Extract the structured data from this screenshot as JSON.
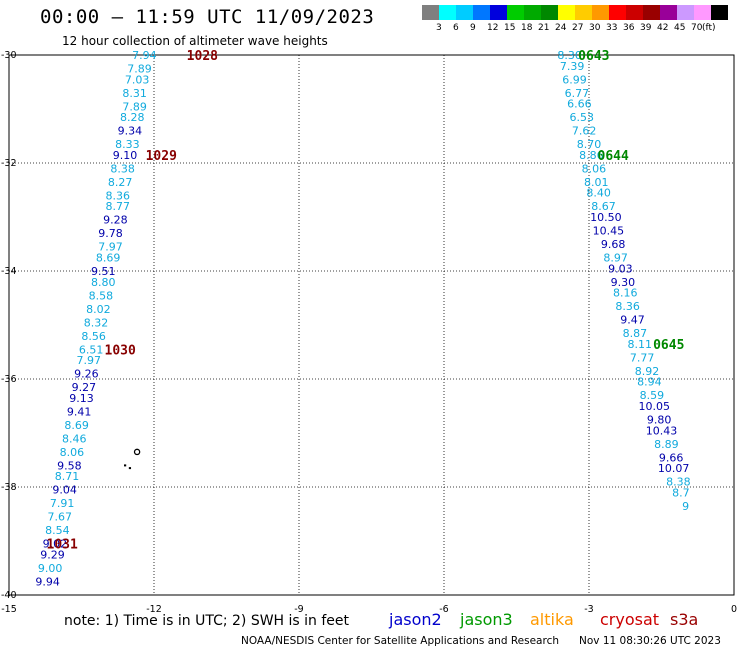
{
  "header": {
    "title": "00:00 – 11:59 UTC 11/09/2023",
    "subtitle": "12 hour collection of altimeter wave heights"
  },
  "colorbar": {
    "swatches": [
      {
        "color": "#7f7f7f",
        "label": ""
      },
      {
        "color": "#00ffff",
        "label": "3"
      },
      {
        "color": "#00ccff",
        "label": "6"
      },
      {
        "color": "#0077ff",
        "label": "9"
      },
      {
        "color": "#0000dd",
        "label": "12"
      },
      {
        "color": "#00cc00",
        "label": "15"
      },
      {
        "color": "#00aa00",
        "label": "18"
      },
      {
        "color": "#008800",
        "label": "21"
      },
      {
        "color": "#ffff00",
        "label": "24"
      },
      {
        "color": "#ffcc00",
        "label": "27"
      },
      {
        "color": "#ff9900",
        "label": "30"
      },
      {
        "color": "#ff0000",
        "label": "33"
      },
      {
        "color": "#cc0000",
        "label": "36"
      },
      {
        "color": "#990000",
        "label": "39"
      },
      {
        "color": "#990099",
        "label": "42"
      },
      {
        "color": "#cc99ff",
        "label": "45"
      },
      {
        "color": "#ff99ff",
        "label": "70"
      },
      {
        "color": "#000000",
        "label": ""
      }
    ],
    "unit": "(ft)"
  },
  "footer": {
    "note": "note:  1) Time is in UTC;  2) SWH is in feet",
    "satellites": [
      {
        "name": "jason2",
        "color": "#0000cc"
      },
      {
        "name": "jason3",
        "color": "#009900"
      },
      {
        "name": "altika",
        "color": "#ff9900"
      },
      {
        "name": "cryosat",
        "color": "#cc0000"
      },
      {
        "name": "s3a",
        "color": "#990000"
      }
    ],
    "credit": "NOAA/NESDIS Center for Satellite Applications and Research",
    "updated": "Nov 11 08:30:26 UTC 2023"
  },
  "chart_data": {
    "type": "scatter",
    "xlim": [
      -15,
      0
    ],
    "ylim": [
      -40,
      -30
    ],
    "x_ticks": [
      "-15",
      "-12",
      "-9",
      "-6",
      "-3",
      "0"
    ],
    "y_ticks": [
      "-30",
      "-32",
      "-34",
      "-36",
      "-38",
      "-40"
    ],
    "grid": true,
    "track_colors": {
      "light": "#11aadd",
      "dark": "#0000aa",
      "time_west": "#880000",
      "time_east": "#008800"
    },
    "tracks": [
      {
        "name": "western-track",
        "points": [
          {
            "lon": -12.2,
            "lat": -30.0,
            "value": "7.94",
            "shade": "light"
          },
          {
            "lon": -12.3,
            "lat": -30.25,
            "value": "7.89",
            "shade": "light"
          },
          {
            "lon": -12.35,
            "lat": -30.45,
            "value": "7.03",
            "shade": "light"
          },
          {
            "lon": -12.4,
            "lat": -30.7,
            "value": "8.31",
            "shade": "light"
          },
          {
            "lon": -12.4,
            "lat": -30.95,
            "value": "7.89",
            "shade": "light"
          },
          {
            "lon": -12.45,
            "lat": -31.15,
            "value": "8.28",
            "shade": "light"
          },
          {
            "lon": -12.5,
            "lat": -31.4,
            "value": "9.34",
            "shade": "dark"
          },
          {
            "lon": -12.55,
            "lat": -31.65,
            "value": "8.33",
            "shade": "light"
          },
          {
            "lon": -12.6,
            "lat": -31.85,
            "value": "9.10",
            "shade": "dark"
          },
          {
            "lon": -12.65,
            "lat": -32.1,
            "value": "8.38",
            "shade": "light"
          },
          {
            "lon": -12.7,
            "lat": -32.35,
            "value": "8.27",
            "shade": "light"
          },
          {
            "lon": -12.75,
            "lat": -32.6,
            "value": "8.36",
            "shade": "light"
          },
          {
            "lon": -12.75,
            "lat": -32.8,
            "value": "8.77",
            "shade": "light"
          },
          {
            "lon": -12.8,
            "lat": -33.05,
            "value": "9.28",
            "shade": "dark"
          },
          {
            "lon": -12.9,
            "lat": -33.3,
            "value": "9.78",
            "shade": "dark"
          },
          {
            "lon": -12.9,
            "lat": -33.55,
            "value": "7.97",
            "shade": "light"
          },
          {
            "lon": -12.95,
            "lat": -33.75,
            "value": "8.69",
            "shade": "light"
          },
          {
            "lon": -13.05,
            "lat": -34.0,
            "value": "9.51",
            "shade": "dark"
          },
          {
            "lon": -13.05,
            "lat": -34.2,
            "value": "8.80",
            "shade": "light"
          },
          {
            "lon": -13.1,
            "lat": -34.45,
            "value": "8.58",
            "shade": "light"
          },
          {
            "lon": -13.15,
            "lat": -34.7,
            "value": "8.02",
            "shade": "light"
          },
          {
            "lon": -13.2,
            "lat": -34.95,
            "value": "8.32",
            "shade": "light"
          },
          {
            "lon": -13.25,
            "lat": -35.2,
            "value": "8.56",
            "shade": "light"
          },
          {
            "lon": -13.3,
            "lat": -35.45,
            "value": "6.51",
            "shade": "light"
          },
          {
            "lon": -13.35,
            "lat": -35.65,
            "value": "7.97",
            "shade": "light"
          },
          {
            "lon": -13.4,
            "lat": -35.9,
            "value": "9.26",
            "shade": "dark"
          },
          {
            "lon": -13.45,
            "lat": -36.15,
            "value": "9.27",
            "shade": "dark"
          },
          {
            "lon": -13.5,
            "lat": -36.35,
            "value": "9.13",
            "shade": "dark"
          },
          {
            "lon": -13.55,
            "lat": -36.6,
            "value": "9.41",
            "shade": "dark"
          },
          {
            "lon": -13.6,
            "lat": -36.85,
            "value": "8.69",
            "shade": "light"
          },
          {
            "lon": -13.65,
            "lat": -37.1,
            "value": "8.46",
            "shade": "light"
          },
          {
            "lon": -13.7,
            "lat": -37.35,
            "value": "8.06",
            "shade": "light"
          },
          {
            "lon": -13.75,
            "lat": -37.6,
            "value": "9.58",
            "shade": "dark"
          },
          {
            "lon": -13.8,
            "lat": -37.8,
            "value": "8.71",
            "shade": "light"
          },
          {
            "lon": -13.85,
            "lat": -38.05,
            "value": "9.04",
            "shade": "dark"
          },
          {
            "lon": -13.9,
            "lat": -38.3,
            "value": "7.91",
            "shade": "light"
          },
          {
            "lon": -13.95,
            "lat": -38.55,
            "value": "7.67",
            "shade": "light"
          },
          {
            "lon": -14.0,
            "lat": -38.8,
            "value": "8.54",
            "shade": "light"
          },
          {
            "lon": -14.05,
            "lat": -39.05,
            "value": "9.02",
            "shade": "dark"
          },
          {
            "lon": -14.1,
            "lat": -39.25,
            "value": "9.29",
            "shade": "dark"
          },
          {
            "lon": -14.15,
            "lat": -39.5,
            "value": "9.00",
            "shade": "light"
          },
          {
            "lon": -14.2,
            "lat": -39.75,
            "value": "9.94",
            "shade": "dark"
          }
        ],
        "times": [
          {
            "lon": -11.0,
            "lat": -30.0,
            "label": "1028",
            "shade": "time_west"
          },
          {
            "lon": -11.85,
            "lat": -31.85,
            "label": "1029",
            "shade": "time_west"
          },
          {
            "lon": -12.7,
            "lat": -35.45,
            "label": "1030",
            "shade": "time_west"
          },
          {
            "lon": -13.9,
            "lat": -39.05,
            "label": "1031",
            "shade": "time_west"
          }
        ]
      },
      {
        "name": "eastern-track",
        "points": [
          {
            "lon": -3.4,
            "lat": -30.0,
            "value": "8.30",
            "shade": "light"
          },
          {
            "lon": -3.35,
            "lat": -30.2,
            "value": "7.39",
            "shade": "light"
          },
          {
            "lon": -3.3,
            "lat": -30.45,
            "value": "6.99",
            "shade": "light"
          },
          {
            "lon": -3.25,
            "lat": -30.7,
            "value": "6.77",
            "shade": "light"
          },
          {
            "lon": -3.2,
            "lat": -30.9,
            "value": "6.66",
            "shade": "light"
          },
          {
            "lon": -3.15,
            "lat": -31.15,
            "value": "6.53",
            "shade": "light"
          },
          {
            "lon": -3.1,
            "lat": -31.4,
            "value": "7.62",
            "shade": "light"
          },
          {
            "lon": -3.0,
            "lat": -31.65,
            "value": "8.70",
            "shade": "light"
          },
          {
            "lon": -2.95,
            "lat": -31.85,
            "value": "8.86",
            "shade": "light"
          },
          {
            "lon": -2.9,
            "lat": -32.1,
            "value": "8.06",
            "shade": "light"
          },
          {
            "lon": -2.85,
            "lat": -32.35,
            "value": "8.01",
            "shade": "light"
          },
          {
            "lon": -2.8,
            "lat": -32.55,
            "value": "8.40",
            "shade": "light"
          },
          {
            "lon": -2.7,
            "lat": -32.8,
            "value": "8.67",
            "shade": "light"
          },
          {
            "lon": -2.65,
            "lat": -33.0,
            "value": "10.50",
            "shade": "dark"
          },
          {
            "lon": -2.6,
            "lat": -33.25,
            "value": "10.45",
            "shade": "dark"
          },
          {
            "lon": -2.5,
            "lat": -33.5,
            "value": "9.68",
            "shade": "dark"
          },
          {
            "lon": -2.45,
            "lat": -33.75,
            "value": "8.97",
            "shade": "light"
          },
          {
            "lon": -2.35,
            "lat": -33.95,
            "value": "9.03",
            "shade": "dark"
          },
          {
            "lon": -2.3,
            "lat": -34.2,
            "value": "9.30",
            "shade": "dark"
          },
          {
            "lon": -2.25,
            "lat": -34.4,
            "value": "8.16",
            "shade": "light"
          },
          {
            "lon": -2.2,
            "lat": -34.65,
            "value": "8.36",
            "shade": "light"
          },
          {
            "lon": -2.1,
            "lat": -34.9,
            "value": "9.47",
            "shade": "dark"
          },
          {
            "lon": -2.05,
            "lat": -35.15,
            "value": "8.87",
            "shade": "light"
          },
          {
            "lon": -1.95,
            "lat": -35.35,
            "value": "8.11",
            "shade": "light"
          },
          {
            "lon": -1.9,
            "lat": -35.6,
            "value": "7.77",
            "shade": "light"
          },
          {
            "lon": -1.8,
            "lat": -35.85,
            "value": "8.92",
            "shade": "light"
          },
          {
            "lon": -1.75,
            "lat": -36.05,
            "value": "8.94",
            "shade": "light"
          },
          {
            "lon": -1.7,
            "lat": -36.3,
            "value": "8.59",
            "shade": "light"
          },
          {
            "lon": -1.65,
            "lat": -36.5,
            "value": "10.05",
            "shade": "dark"
          },
          {
            "lon": -1.55,
            "lat": -36.75,
            "value": "9.80",
            "shade": "dark"
          },
          {
            "lon": -1.5,
            "lat": -36.95,
            "value": "10.43",
            "shade": "dark"
          },
          {
            "lon": -1.4,
            "lat": -37.2,
            "value": "8.89",
            "shade": "light"
          },
          {
            "lon": -1.3,
            "lat": -37.45,
            "value": "9.66",
            "shade": "dark"
          },
          {
            "lon": -1.25,
            "lat": -37.65,
            "value": "10.07",
            "shade": "dark"
          },
          {
            "lon": -1.15,
            "lat": -37.9,
            "value": "8.38",
            "shade": "light"
          },
          {
            "lon": -1.1,
            "lat": -38.1,
            "value": "8.7",
            "shade": "light"
          },
          {
            "lon": -1.0,
            "lat": -38.35,
            "value": "9",
            "shade": "light"
          }
        ],
        "times": [
          {
            "lon": -2.9,
            "lat": -30.0,
            "label": "0643",
            "shade": "time_east"
          },
          {
            "lon": -2.5,
            "lat": -31.85,
            "label": "0644",
            "shade": "time_east"
          },
          {
            "lon": -1.35,
            "lat": -35.35,
            "label": "0645",
            "shade": "time_east"
          }
        ]
      }
    ],
    "land": [
      {
        "name": "island-ring",
        "lon": -12.35,
        "lat": -37.35
      },
      {
        "name": "islet-dot",
        "lon": -12.6,
        "lat": -37.6
      },
      {
        "name": "islet-dot-2",
        "lon": -12.5,
        "lat": -37.65
      }
    ]
  }
}
